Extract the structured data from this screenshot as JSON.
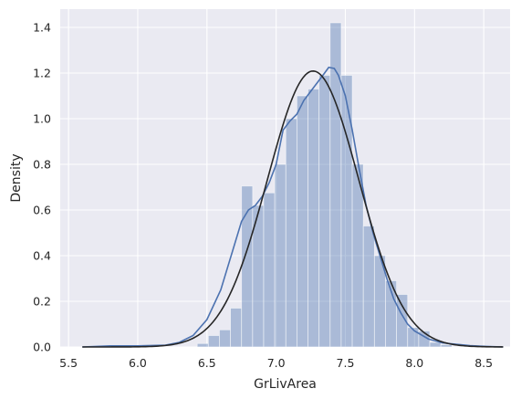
{
  "chart_data": {
    "type": "bar",
    "title": "",
    "xlabel": "GrLivArea",
    "ylabel": "Density",
    "xlim": [
      5.44,
      8.69
    ],
    "ylim": [
      0,
      1.48
    ],
    "xticks": [
      5.5,
      6.0,
      6.5,
      7.0,
      7.5,
      8.0,
      8.5
    ],
    "xtick_labels": [
      "5.5",
      "6.0",
      "6.5",
      "7.0",
      "7.5",
      "8.0",
      "8.5"
    ],
    "yticks": [
      0.0,
      0.2,
      0.4,
      0.6,
      0.8,
      1.0,
      1.2,
      1.4
    ],
    "ytick_labels": [
      "0.0",
      "0.2",
      "0.4",
      "0.6",
      "0.8",
      "1.0",
      "1.2",
      "1.4"
    ],
    "grid": true,
    "background": "#eaeaf2",
    "histogram": {
      "color": "#4c72b0",
      "bins": [
        {
          "x0": 6.43,
          "x1": 6.51,
          "density": 0.015
        },
        {
          "x0": 6.51,
          "x1": 6.59,
          "density": 0.05
        },
        {
          "x0": 6.59,
          "x1": 6.67,
          "density": 0.075
        },
        {
          "x0": 6.67,
          "x1": 6.75,
          "density": 0.17
        },
        {
          "x0": 6.75,
          "x1": 6.83,
          "density": 0.705
        },
        {
          "x0": 6.83,
          "x1": 6.91,
          "density": 0.62
        },
        {
          "x0": 6.91,
          "x1": 6.99,
          "density": 0.675
        },
        {
          "x0": 6.99,
          "x1": 7.07,
          "density": 0.8
        },
        {
          "x0": 7.07,
          "x1": 7.15,
          "density": 1.0
        },
        {
          "x0": 7.15,
          "x1": 7.23,
          "density": 1.1
        },
        {
          "x0": 7.23,
          "x1": 7.31,
          "density": 1.13
        },
        {
          "x0": 7.31,
          "x1": 7.39,
          "density": 1.19
        },
        {
          "x0": 7.39,
          "x1": 7.47,
          "density": 1.42
        },
        {
          "x0": 7.47,
          "x1": 7.55,
          "density": 1.19
        },
        {
          "x0": 7.55,
          "x1": 7.63,
          "density": 0.8
        },
        {
          "x0": 7.63,
          "x1": 7.71,
          "density": 0.53
        },
        {
          "x0": 7.71,
          "x1": 7.79,
          "density": 0.4
        },
        {
          "x0": 7.79,
          "x1": 7.87,
          "density": 0.29
        },
        {
          "x0": 7.87,
          "x1": 7.95,
          "density": 0.23
        },
        {
          "x0": 7.95,
          "x1": 8.03,
          "density": 0.085
        },
        {
          "x0": 8.03,
          "x1": 8.11,
          "density": 0.07
        },
        {
          "x0": 8.11,
          "x1": 8.19,
          "density": 0.02
        },
        {
          "x0": 8.19,
          "x1": 8.27,
          "density": 0.01
        }
      ]
    },
    "series": [
      {
        "kind": "kde",
        "color": "#4c72b0",
        "x": [
          5.6,
          5.8,
          6.0,
          6.2,
          6.3,
          6.4,
          6.5,
          6.6,
          6.7,
          6.75,
          6.8,
          6.85,
          6.9,
          6.95,
          7.0,
          7.05,
          7.1,
          7.15,
          7.2,
          7.25,
          7.3,
          7.35,
          7.38,
          7.42,
          7.45,
          7.5,
          7.55,
          7.6,
          7.65,
          7.7,
          7.75,
          7.8,
          7.85,
          7.9,
          7.95,
          8.0,
          8.1,
          8.2,
          8.3,
          8.4,
          8.5,
          8.64
        ],
        "y": [
          0.0,
          0.005,
          0.005,
          0.008,
          0.02,
          0.05,
          0.12,
          0.25,
          0.45,
          0.55,
          0.6,
          0.62,
          0.66,
          0.72,
          0.8,
          0.95,
          0.99,
          1.02,
          1.08,
          1.12,
          1.16,
          1.2,
          1.225,
          1.22,
          1.19,
          1.1,
          0.95,
          0.78,
          0.62,
          0.5,
          0.4,
          0.3,
          0.21,
          0.15,
          0.1,
          0.07,
          0.035,
          0.018,
          0.012,
          0.006,
          0.003,
          0.0
        ]
      },
      {
        "kind": "normal-fit",
        "color": "#262626",
        "mean": 7.267,
        "std": 0.33
      }
    ]
  }
}
